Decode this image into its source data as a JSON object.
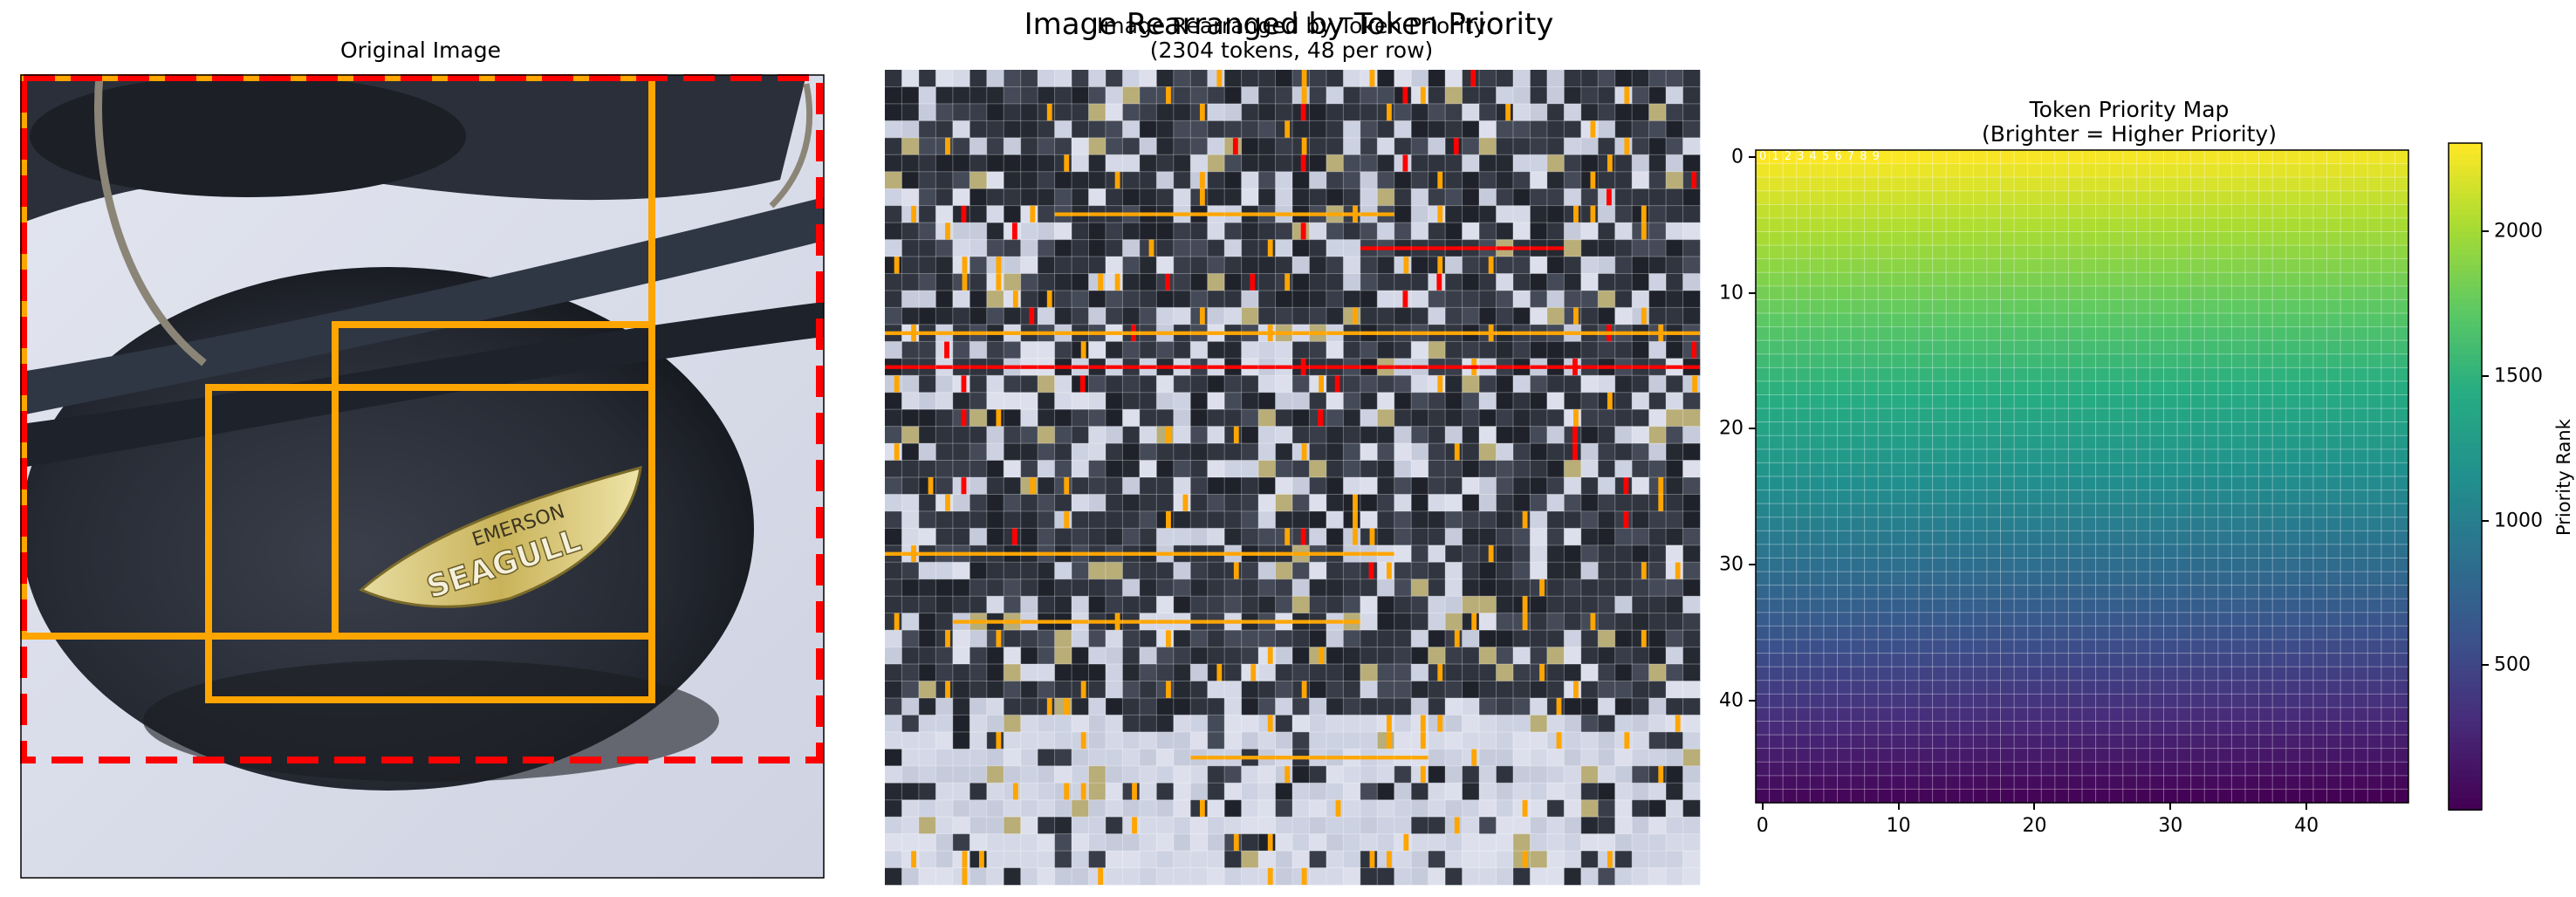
{
  "figure": {
    "suptitle": "Image Rearranged by Token Priority"
  },
  "panels": {
    "original": {
      "title": "Original Image",
      "label_text": [
        "EMERSON",
        "SEAGULL"
      ]
    },
    "rearranged": {
      "title": "Image Rearranged by Token Priority",
      "subtitle": "(2304 tokens, 48 per row)"
    },
    "priority_map": {
      "title": "Token Priority Map",
      "subtitle": "(Brighter = Higher Priority)",
      "corner_digits": "0 1 2 3 4 5 6 7 8 9",
      "colorbar_label": "Priority Rank"
    }
  },
  "colors": {
    "box_orange": "#ffa500",
    "box_red": "#ff0000",
    "metal_dark": "#2a2e37",
    "background_cloth": "#d7dbe8",
    "label_gold": "#c9b35a"
  },
  "chart_data": [
    {
      "type": "other",
      "title": "Original Image",
      "annotations": {
        "boxes": [
          {
            "color": "orange",
            "style": "solid"
          },
          {
            "color": "orange",
            "style": "solid"
          },
          {
            "color": "orange",
            "style": "solid"
          },
          {
            "color": "red",
            "style": "dashed"
          }
        ]
      }
    },
    {
      "type": "other",
      "title": "Image Rearranged by Token Priority",
      "subtitle": "(2304 tokens, 48 per row)",
      "grid": {
        "rows": 48,
        "cols": 48,
        "tokens": 2304
      }
    },
    {
      "type": "heatmap",
      "title": "Token Priority Map",
      "subtitle": "(Brighter = Higher Priority)",
      "grid": {
        "rows": 48,
        "cols": 48
      },
      "xticks": [
        0,
        10,
        20,
        30,
        40
      ],
      "yticks": [
        0,
        10,
        20,
        30,
        40
      ],
      "xlim": [
        -0.5,
        47.5
      ],
      "ylim": [
        47.5,
        -0.5
      ],
      "value_rule": "rank = 2304 - (row*48 + col)",
      "colormap": "viridis",
      "colorbar": {
        "label": "Priority Rank",
        "range": [
          1,
          2304
        ],
        "ticks": [
          500,
          1000,
          1500,
          2000
        ]
      },
      "grid_lines": true
    }
  ]
}
